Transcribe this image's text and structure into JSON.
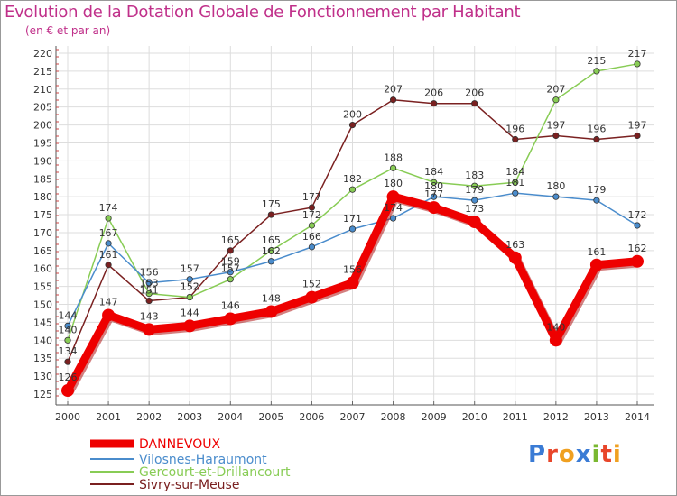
{
  "header": {
    "title": "Evolution de la Dotation Globale de Fonctionnement par Habitant",
    "subtitle": "(en € et par an)"
  },
  "logo": {
    "text": "Proxiti",
    "colors": [
      "#3a7bd5",
      "#e8462a",
      "#f0a020",
      "#3a7bd5",
      "#7ab830",
      "#e8462a",
      "#f0a020"
    ]
  },
  "chart_data": {
    "type": "line",
    "x": [
      2000,
      2001,
      2002,
      2003,
      2004,
      2005,
      2006,
      2007,
      2008,
      2009,
      2010,
      2011,
      2012,
      2013,
      2014
    ],
    "ylim": [
      125,
      220
    ],
    "yticks": [
      125,
      130,
      135,
      140,
      145,
      150,
      155,
      160,
      165,
      170,
      175,
      180,
      185,
      190,
      195,
      200,
      205,
      210,
      215,
      220
    ],
    "grid": true,
    "legend_position": "bottom-left",
    "series": [
      {
        "name": "DANNEVOUX",
        "color": "#ee0000",
        "values": [
          126,
          147,
          143,
          144,
          146,
          148,
          152,
          156,
          180,
          177,
          173,
          163,
          140,
          161,
          162
        ]
      },
      {
        "name": "Vilosnes-Haraumont",
        "color": "#4a8ccc",
        "values": [
          144,
          167,
          156,
          157,
          159,
          162,
          166,
          171,
          174,
          180,
          179,
          181,
          180,
          179,
          172
        ]
      },
      {
        "name": "Gercourt-et-Drillancourt",
        "color": "#88cc55",
        "values": [
          140,
          174,
          153,
          152,
          157,
          165,
          172,
          182,
          188,
          184,
          183,
          184,
          207,
          215,
          217
        ]
      },
      {
        "name": "Sivry-sur-Meuse",
        "color": "#7a2020",
        "values": [
          134,
          161,
          151,
          152,
          165,
          175,
          177,
          200,
          207,
          206,
          206,
          196,
          197,
          196,
          197
        ]
      }
    ]
  }
}
